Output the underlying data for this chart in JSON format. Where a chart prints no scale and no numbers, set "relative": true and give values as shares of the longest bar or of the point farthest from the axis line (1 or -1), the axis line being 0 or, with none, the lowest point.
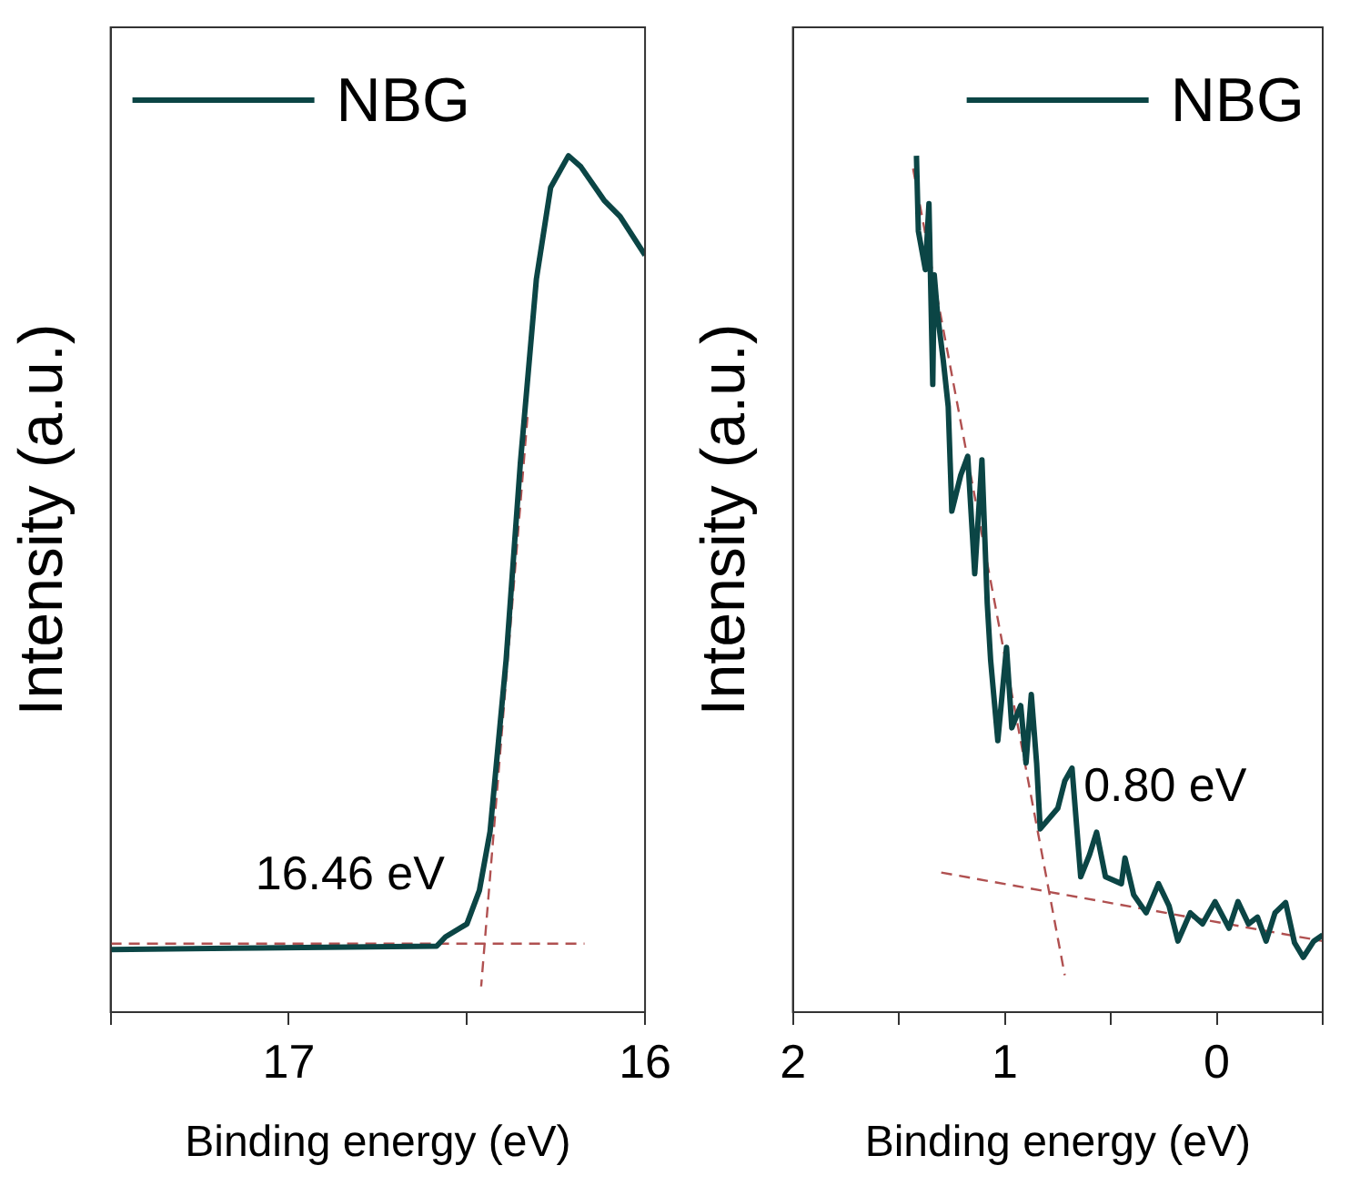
{
  "chart_data": [
    {
      "type": "line",
      "relative": true,
      "xlabel": "Binding energy (eV)",
      "ylabel": "Intensity (a.u.)",
      "xlim": [
        17.5,
        16
      ],
      "xticks": [
        {
          "value": 17.5,
          "label": null
        },
        17,
        {
          "value": 16.5,
          "label": null
        },
        16
      ],
      "grid": false,
      "legend": "top left",
      "line_style": "solid",
      "marker": "none",
      "annotations": [
        {
          "text": "16.46 eV",
          "x": 16.46,
          "y": 0.08
        }
      ],
      "series": [
        {
          "name": "NBG",
          "color": "#0b4545",
          "x": [
            17.5,
            17.085,
            16.585,
            16.56,
            16.5,
            16.465,
            16.435,
            16.39,
            16.35,
            16.305,
            16.265,
            16.215,
            16.18,
            16.115,
            16.07,
            16.0
          ],
          "values": [
            0.073,
            0.075,
            0.077,
            0.088,
            0.103,
            0.142,
            0.211,
            0.411,
            0.641,
            0.856,
            0.963,
            1.0,
            0.987,
            0.948,
            0.929,
            0.884
          ]
        },
        {
          "color": "#b05050",
          "line_style": "dashed",
          "x": [
            17.5,
            16.17
          ],
          "values": [
            0.08,
            0.08
          ]
        },
        {
          "color": "#b05050",
          "line_style": "dashed",
          "x": [
            16.33,
            16.46
          ],
          "values": [
            0.695,
            0.03
          ]
        }
      ]
    },
    {
      "type": "line",
      "relative": true,
      "xlabel": "Binding energy (eV)",
      "ylabel": "Intensity (a.u.)",
      "xlim": [
        2,
        -0.5
      ],
      "xticks": [
        2,
        {
          "value": 1.5,
          "label": null
        },
        1,
        {
          "value": 0.5,
          "label": null
        },
        0,
        {
          "value": -0.5,
          "label": null
        }
      ],
      "grid": false,
      "legend": "top right",
      "line_style": "solid",
      "marker": "none",
      "annotations": [
        {
          "text": "0.80 eV",
          "x": 0.8,
          "y": 0.14
        }
      ],
      "series": [
        {
          "name": "NBG",
          "color": "#0b4545",
          "x": [
            1.417,
            1.408,
            1.375,
            1.358,
            1.34,
            1.333,
            1.317,
            1.29,
            1.267,
            1.25,
            1.208,
            1.175,
            1.142,
            1.108,
            1.083,
            1.067,
            1.033,
            0.992,
            0.967,
            0.925,
            0.9,
            0.875,
            0.85,
            0.833,
            0.75,
            0.717,
            0.683,
            0.642,
            0.6,
            0.567,
            0.525,
            0.45,
            0.433,
            0.392,
            0.333,
            0.275,
            0.225,
            0.183,
            0.125,
            0.067,
            0.008,
            -0.058,
            -0.1,
            -0.15,
            -0.192,
            -0.233,
            -0.275,
            -0.325,
            -0.367,
            -0.408,
            -0.458,
            -0.5
          ],
          "values": [
            1.0,
            0.912,
            0.867,
            0.944,
            0.733,
            0.861,
            0.814,
            0.76,
            0.707,
            0.585,
            0.627,
            0.649,
            0.512,
            0.645,
            0.478,
            0.411,
            0.317,
            0.426,
            0.332,
            0.358,
            0.291,
            0.371,
            0.291,
            0.214,
            0.238,
            0.27,
            0.285,
            0.158,
            0.184,
            0.21,
            0.158,
            0.15,
            0.18,
            0.137,
            0.116,
            0.15,
            0.124,
            0.083,
            0.116,
            0.103,
            0.129,
            0.098,
            0.129,
            0.103,
            0.111,
            0.083,
            0.116,
            0.128,
            0.081,
            0.064,
            0.083,
            0.09
          ]
        },
        {
          "color": "#b05050",
          "line_style": "dashed",
          "x": [
            1.433,
            0.717
          ],
          "values": [
            0.985,
            0.043
          ]
        },
        {
          "color": "#b05050",
          "line_style": "dashed",
          "x": [
            1.3,
            -0.5
          ],
          "values": [
            0.163,
            0.083
          ]
        }
      ]
    }
  ]
}
